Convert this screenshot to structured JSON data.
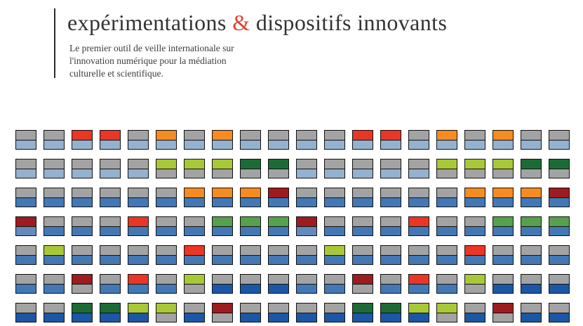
{
  "header": {
    "title_part1": "expérimentations ",
    "title_amp": "&",
    "title_part2": " dispositifs innovants",
    "tagline_lines": [
      "Le premier outil de veille internationale sur",
      "l'innovation numérique pour la médiation",
      "culturelle et scientifique."
    ]
  },
  "colors": {
    "accent_ampersand": "#e04330",
    "title_text": "#333333",
    "tagline_text": "#3d3d3d",
    "divider_line": "#2b2b2b",
    "tile_border": "#111111",
    "palette": {
      "gray": "#a3a3a3",
      "lightblue": "#94b2d0",
      "blue": "#4478b5",
      "steelblue": "#6389bd",
      "darkblue": "#1c57a7",
      "red": "#e93625",
      "orange": "#f68b21",
      "yellowgreen": "#a9c838",
      "green": "#56a14d",
      "darkgreen": "#1c6b36",
      "darkred": "#9c1c20"
    }
  },
  "grid": {
    "columns": 20,
    "rows": 7,
    "cell_format": "topColor/bottomColor",
    "cells": [
      [
        "gray/lightblue",
        "gray/lightblue",
        "red/lightblue",
        "red/lightblue",
        "gray/lightblue",
        "orange/lightblue",
        "gray/lightblue",
        "orange/lightblue",
        "gray/lightblue",
        "gray/lightblue",
        "gray/lightblue",
        "gray/lightblue",
        "red/lightblue",
        "red/lightblue",
        "gray/lightblue",
        "orange/lightblue",
        "gray/lightblue",
        "orange/lightblue",
        "gray/lightblue",
        "gray/lightblue"
      ],
      [
        "gray/lightblue",
        "gray/lightblue",
        "gray/lightblue",
        "gray/lightblue",
        "gray/lightblue",
        "yellowgreen/gray",
        "yellowgreen/gray",
        "yellowgreen/gray",
        "darkgreen/gray",
        "darkgreen/gray",
        "gray/lightblue",
        "gray/lightblue",
        "gray/lightblue",
        "gray/lightblue",
        "gray/lightblue",
        "yellowgreen/gray",
        "yellowgreen/gray",
        "yellowgreen/gray",
        "darkgreen/gray",
        "darkgreen/gray"
      ],
      [
        "gray/blue",
        "gray/blue",
        "gray/blue",
        "gray/blue",
        "gray/blue",
        "gray/blue",
        "orange/blue",
        "orange/blue",
        "orange/blue",
        "darkred/blue",
        "gray/blue",
        "gray/blue",
        "gray/blue",
        "gray/blue",
        "gray/blue",
        "gray/blue",
        "orange/blue",
        "orange/blue",
        "orange/blue",
        "darkred/blue"
      ],
      [
        "darkred/steelblue",
        "gray/blue",
        "gray/blue",
        "gray/blue",
        "red/blue",
        "gray/blue",
        "gray/blue",
        "green/blue",
        "green/blue",
        "green/blue",
        "darkred/steelblue",
        "gray/blue",
        "gray/blue",
        "gray/blue",
        "red/blue",
        "gray/blue",
        "gray/blue",
        "green/blue",
        "green/blue",
        "green/blue"
      ],
      [
        "gray/blue",
        "yellowgreen/blue",
        "gray/blue",
        "gray/blue",
        "gray/blue",
        "gray/blue",
        "red/blue",
        "gray/blue",
        "gray/blue",
        "gray/blue",
        "gray/blue",
        "yellowgreen/blue",
        "gray/blue",
        "gray/blue",
        "gray/blue",
        "gray/blue",
        "red/blue",
        "gray/blue",
        "gray/blue",
        "gray/blue"
      ],
      [
        "gray/blue",
        "gray/blue",
        "darkred/gray",
        "gray/blue",
        "red/blue",
        "gray/blue",
        "yellowgreen/gray",
        "gray/darkblue",
        "gray/darkblue",
        "gray/darkblue",
        "gray/blue",
        "gray/blue",
        "darkred/gray",
        "gray/blue",
        "red/blue",
        "gray/blue",
        "yellowgreen/gray",
        "gray/darkblue",
        "gray/darkblue",
        "gray/darkblue"
      ],
      [
        "gray/darkblue",
        "gray/darkblue",
        "darkgreen/darkblue",
        "darkgreen/darkblue",
        "yellowgreen/darkblue",
        "yellowgreen/gray",
        "gray/darkblue",
        "darkred/gray",
        "gray/darkblue",
        "gray/darkblue",
        "gray/darkblue",
        "gray/darkblue",
        "darkgreen/darkblue",
        "darkgreen/darkblue",
        "yellowgreen/darkblue",
        "yellowgreen/gray",
        "gray/darkblue",
        "darkred/gray",
        "gray/darkblue",
        "gray/darkblue"
      ]
    ]
  }
}
